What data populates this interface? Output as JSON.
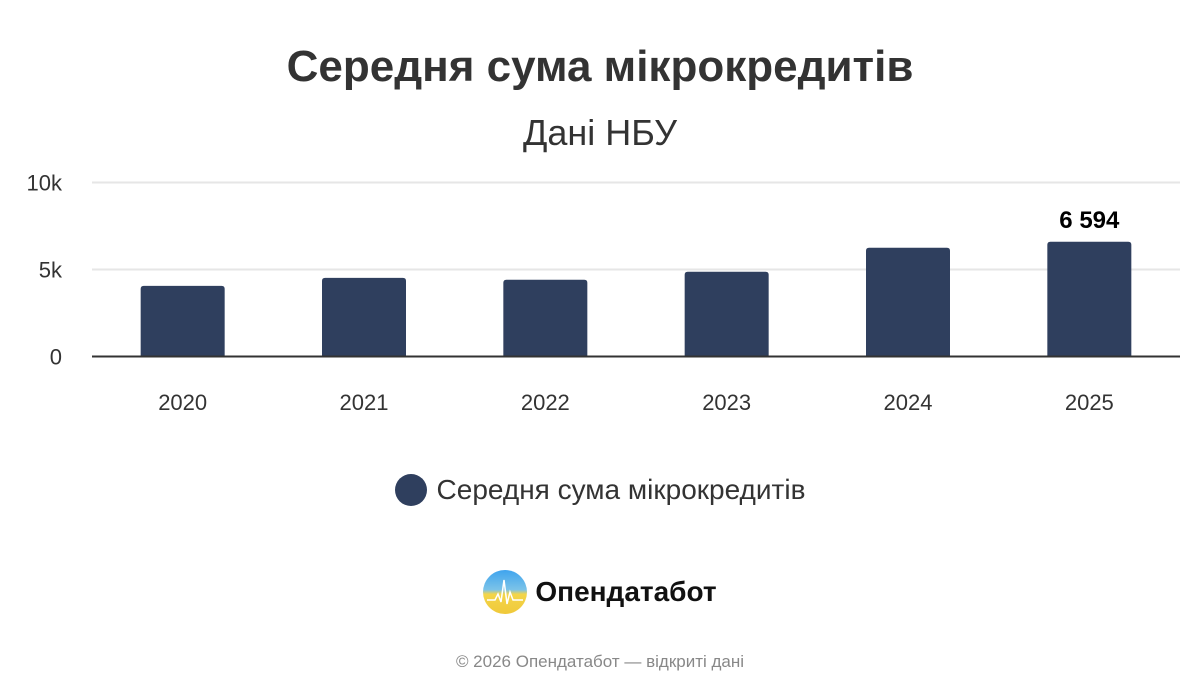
{
  "chart_data": {
    "type": "bar",
    "title": "Середня сума мікрокредитів",
    "subtitle": "Дані НБУ",
    "categories": [
      "2020",
      "2021",
      "2022",
      "2023",
      "2024",
      "2025"
    ],
    "series": [
      {
        "name": "Середня сума мікрокредитів",
        "values": [
          4060,
          4520,
          4410,
          4870,
          6250,
          6594
        ],
        "color": "#2f3f5e"
      }
    ],
    "data_labels": [
      {
        "category": "2025",
        "text": "6 594"
      }
    ],
    "yticks": [
      {
        "value": 0,
        "label": "0"
      },
      {
        "value": 5000,
        "label": "5k"
      },
      {
        "value": 10000,
        "label": "10k"
      }
    ],
    "ylim": [
      0,
      10000
    ],
    "grid": true,
    "legend": "bottom-center"
  },
  "brand": {
    "name": "Опендатабот"
  },
  "footer": "© 2026 Опендатабот — відкриті дані"
}
